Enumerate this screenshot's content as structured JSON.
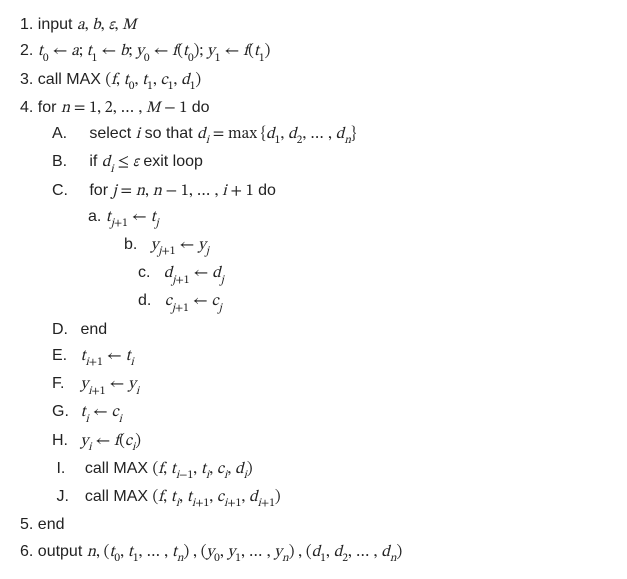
{
  "colors": {
    "text": "#222222",
    "background": "#ffffff"
  },
  "font": {
    "body_family": "Segoe UI",
    "math_family": "Cambria Math",
    "size_pt": 12,
    "line_height": 1.65
  },
  "algorithm": {
    "type": "pseudocode",
    "lines": {
      "l1": "1. input a, b, ε, M",
      "l2": "2. t₀ ← a; t₁ ← b; y₀ ← f(t₀); y₁ ← f(t₁)",
      "l3": "3. call MAX (f, t₀, t₁, c₁, d₁)",
      "l4": "4. for n = 1, 2, … , M − 1 do",
      "lA": "A.    select i so that dᵢ = max {d₁, d₂, … , dₙ}",
      "lB": "B.    if dᵢ ≤ ε exit loop",
      "lC": "C.    for j = n, n − 1, … , i + 1 do",
      "la": "a. t_{j+1} ← t_j",
      "lb": "b.    y_{j+1} ← y_j",
      "lc": "c.    d_{j+1} ← d_j",
      "ld": "d.    c_{j+1} ← c_j",
      "lD": "D. end",
      "lE": "E. t_{i+1} ← t_i",
      "lF": "F. y_{i+1} ← y_i",
      "lG": "G. t_i ← c_i",
      "lH": "H. y_i ← f(c_i)",
      "lI": "I. call MAX (f, t_{i−1}, t_i, c_i, d_i)",
      "lJ": "J. call MAX (f, t_i, t_{i+1}, c_{i+1}, d_{i+1})",
      "l5": "5. end",
      "l6": "6. output n, (t₀, t₁, … , tₙ), (y₀, y₁, … , yₙ), (d₁, d₂, … , dₙ)"
    }
  }
}
